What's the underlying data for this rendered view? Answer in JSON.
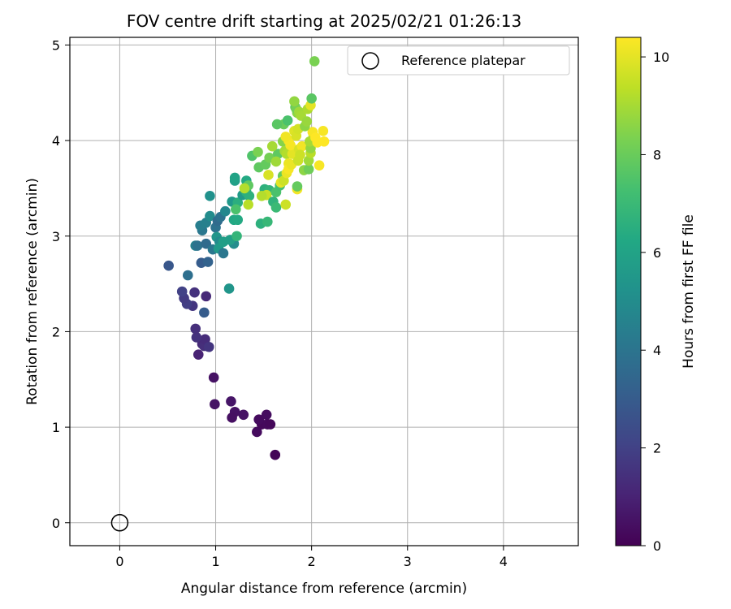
{
  "chart_data": {
    "type": "scatter",
    "title": "FOV centre drift starting at 2025/02/21 01:26:13",
    "xlabel": "Angular distance from reference (arcmin)",
    "ylabel": "Rotation from reference (arcmin)",
    "xlim": [
      -0.52,
      4.78
    ],
    "ylim": [
      -0.24,
      5.08
    ],
    "x_ticks": [
      0,
      1,
      2,
      3,
      4
    ],
    "y_ticks": [
      0,
      1,
      2,
      3,
      4,
      5
    ],
    "grid": true,
    "legend": {
      "position": "top-right",
      "entries": [
        "Reference platepar"
      ]
    },
    "reference_point": {
      "x": 0.0,
      "y": 0.0
    },
    "colorbar": {
      "label": "Hours from first FF file",
      "colormap": "viridis",
      "range": [
        0,
        10.4
      ],
      "ticks": [
        0,
        2,
        4,
        6,
        8,
        10
      ]
    },
    "series": [
      {
        "points": [
          [
            1.62,
            0.71,
            0.1
          ],
          [
            1.43,
            0.95,
            0.3
          ],
          [
            1.48,
            1.03,
            0.2
          ],
          [
            1.54,
            1.03,
            0.25
          ],
          [
            1.57,
            1.03,
            0.2
          ],
          [
            1.45,
            1.08,
            0.3
          ],
          [
            1.53,
            1.13,
            0.35
          ],
          [
            1.29,
            1.13,
            0.5
          ],
          [
            1.2,
            1.16,
            0.5
          ],
          [
            1.17,
            1.1,
            0.45
          ],
          [
            1.16,
            1.27,
            0.6
          ],
          [
            0.99,
            1.24,
            0.55
          ],
          [
            0.98,
            1.52,
            0.5
          ],
          [
            0.82,
            1.76,
            1.0
          ],
          [
            0.86,
            1.87,
            1.2
          ],
          [
            0.88,
            1.85,
            1.4
          ],
          [
            0.89,
            1.92,
            1.3
          ],
          [
            0.93,
            1.84,
            1.6
          ],
          [
            0.8,
            1.94,
            1.5
          ],
          [
            0.79,
            2.03,
            1.4
          ],
          [
            0.88,
            2.2,
            3.0
          ],
          [
            0.9,
            2.37,
            1.2
          ],
          [
            0.78,
            2.41,
            1.5
          ],
          [
            0.76,
            2.27,
            1.6
          ],
          [
            0.7,
            2.29,
            1.9
          ],
          [
            0.67,
            2.35,
            1.8
          ],
          [
            0.65,
            2.42,
            2.0
          ],
          [
            0.51,
            2.69,
            2.8
          ],
          [
            0.71,
            2.59,
            3.8
          ],
          [
            0.79,
            2.9,
            4.5
          ],
          [
            0.85,
            2.72,
            3.0
          ],
          [
            0.92,
            2.73,
            3.3
          ],
          [
            0.81,
            2.9,
            3.9
          ],
          [
            0.9,
            2.92,
            3.6
          ],
          [
            0.97,
            2.86,
            4.1
          ],
          [
            0.86,
            3.06,
            4.1
          ],
          [
            0.84,
            3.11,
            4.4
          ],
          [
            0.9,
            3.14,
            4.5
          ],
          [
            0.94,
            3.21,
            5.0
          ],
          [
            0.94,
            3.42,
            5.2
          ],
          [
            1.0,
            3.09,
            3.9
          ],
          [
            1.02,
            3.16,
            3.6
          ],
          [
            1.05,
            3.2,
            3.9
          ],
          [
            1.01,
            2.99,
            5.4
          ],
          [
            1.04,
            2.94,
            4.9
          ],
          [
            1.03,
            2.87,
            5.6
          ],
          [
            1.08,
            2.82,
            4.1
          ],
          [
            1.08,
            2.94,
            5.8
          ],
          [
            1.1,
            3.26,
            4.8
          ],
          [
            1.14,
            2.45,
            5.4
          ],
          [
            1.19,
            2.92,
            5.0
          ],
          [
            1.15,
            2.96,
            5.8
          ],
          [
            1.22,
            3.0,
            6.8
          ],
          [
            1.19,
            3.17,
            6.2
          ],
          [
            1.23,
            3.17,
            6.3
          ],
          [
            1.17,
            3.36,
            5.5
          ],
          [
            1.23,
            3.35,
            6.5
          ],
          [
            1.2,
            3.58,
            5.9
          ],
          [
            1.2,
            3.61,
            6.0
          ],
          [
            1.28,
            3.43,
            5.6
          ],
          [
            1.32,
            3.46,
            6.5
          ],
          [
            1.32,
            3.58,
            6.3
          ],
          [
            1.35,
            3.42,
            6.6
          ],
          [
            1.21,
            3.28,
            7.4
          ],
          [
            1.34,
            3.53,
            7.8
          ],
          [
            1.3,
            3.5,
            9.2
          ],
          [
            1.34,
            3.33,
            9.3
          ],
          [
            1.47,
            3.13,
            6.6
          ],
          [
            1.54,
            3.15,
            6.9
          ],
          [
            1.51,
            3.49,
            6.6
          ],
          [
            1.56,
            3.48,
            6.8
          ],
          [
            1.53,
            3.43,
            9.5
          ],
          [
            1.48,
            3.42,
            9.2
          ],
          [
            1.6,
            3.36,
            6.7
          ],
          [
            1.63,
            3.3,
            7.0
          ],
          [
            1.63,
            3.46,
            7.4
          ],
          [
            1.67,
            3.53,
            7.3
          ],
          [
            1.73,
            3.33,
            9.6
          ],
          [
            1.7,
            3.63,
            8.0
          ],
          [
            1.68,
            3.56,
            10.0
          ],
          [
            1.71,
            3.58,
            9.6
          ],
          [
            1.55,
            3.64,
            9.8
          ],
          [
            1.38,
            3.84,
            7.5
          ],
          [
            1.44,
            3.88,
            8.3
          ],
          [
            1.45,
            3.72,
            7.8
          ],
          [
            1.52,
            3.75,
            7.9
          ],
          [
            1.56,
            3.82,
            8.2
          ],
          [
            1.65,
            3.86,
            7.8
          ],
          [
            1.7,
            3.99,
            8.5
          ],
          [
            1.72,
            3.89,
            9.0
          ],
          [
            1.74,
            3.86,
            9.2
          ],
          [
            1.76,
            3.76,
            10.1
          ],
          [
            1.74,
            3.66,
            10.1
          ],
          [
            1.76,
            3.7,
            10.3
          ],
          [
            1.79,
            3.75,
            10.1
          ],
          [
            1.8,
            3.86,
            10.0
          ],
          [
            1.78,
            3.95,
            10.3
          ],
          [
            1.76,
            4.0,
            10.3
          ],
          [
            1.73,
            4.04,
            10.2
          ],
          [
            1.82,
            4.1,
            9.9
          ],
          [
            1.84,
            4.05,
            9.8
          ],
          [
            1.86,
            4.12,
            9.7
          ],
          [
            1.87,
            3.91,
            9.8
          ],
          [
            1.9,
            3.94,
            10.2
          ],
          [
            1.88,
            3.85,
            9.6
          ],
          [
            1.86,
            3.79,
            9.6
          ],
          [
            1.92,
            3.69,
            8.6
          ],
          [
            1.97,
            3.7,
            8.1
          ],
          [
            1.97,
            3.79,
            8.9
          ],
          [
            1.99,
            3.87,
            9.3
          ],
          [
            1.99,
            3.92,
            8.7
          ],
          [
            1.98,
            3.99,
            9.0
          ],
          [
            2.02,
            4.05,
            9.1
          ],
          [
            2.01,
            4.09,
            10.3
          ],
          [
            2.04,
            4.03,
            10.4
          ],
          [
            2.06,
            3.98,
            10.4
          ],
          [
            2.08,
            3.74,
            10.3
          ],
          [
            2.12,
            4.1,
            10.3
          ],
          [
            2.13,
            3.99,
            10.4
          ],
          [
            1.71,
            4.17,
            8.0
          ],
          [
            1.64,
            4.17,
            7.7
          ],
          [
            1.75,
            4.21,
            7.4
          ],
          [
            1.83,
            4.35,
            7.8
          ],
          [
            1.85,
            4.29,
            8.6
          ],
          [
            1.84,
            4.33,
            8.2
          ],
          [
            1.82,
            4.41,
            8.7
          ],
          [
            1.87,
            4.3,
            8.9
          ],
          [
            1.89,
            4.26,
            9.0
          ],
          [
            1.93,
            4.15,
            8.6
          ],
          [
            1.95,
            4.2,
            8.8
          ],
          [
            1.96,
            4.33,
            9.1
          ],
          [
            1.99,
            4.37,
            10.0
          ],
          [
            2.0,
            4.44,
            7.7
          ],
          [
            2.03,
            4.83,
            8.3
          ],
          [
            1.85,
            3.49,
            10.2
          ],
          [
            1.85,
            3.52,
            7.9
          ],
          [
            1.63,
            3.78,
            8.9
          ],
          [
            1.59,
            3.94,
            9.0
          ]
        ]
      }
    ]
  }
}
